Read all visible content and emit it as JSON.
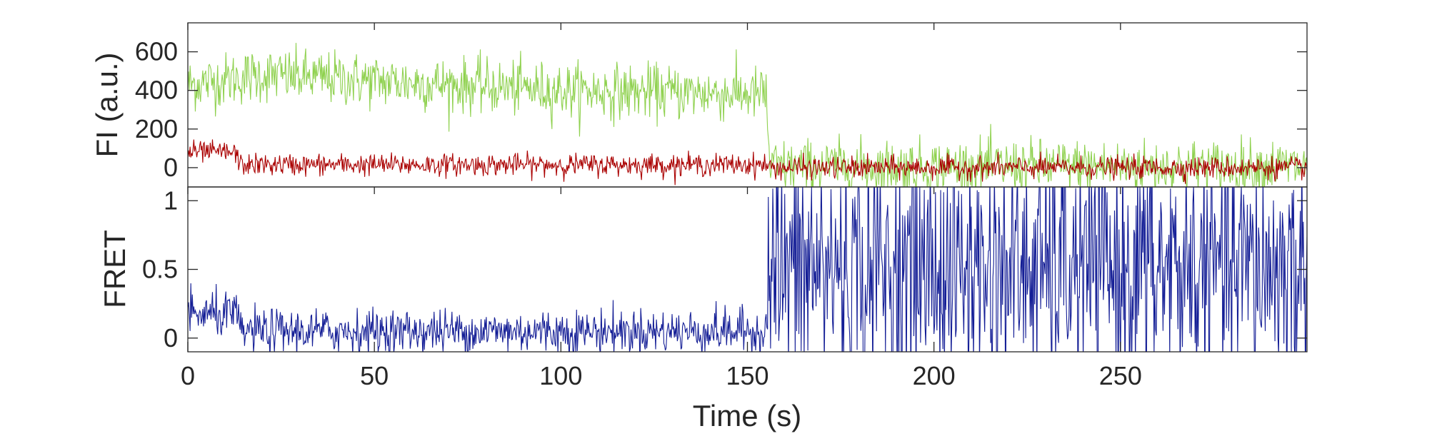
{
  "colors": {
    "donor": "#8fd14f",
    "acceptor": "#aa0000",
    "fret": "#141e96",
    "axes": "#262626"
  },
  "chart_data": [
    {
      "type": "line",
      "panel": "top",
      "ylabel": "FI (a.u.)",
      "xlim": [
        0,
        300
      ],
      "ylim": [
        -100,
        750
      ],
      "yticks": [
        0,
        200,
        400,
        600
      ],
      "ytick_labels": [
        "0",
        "200",
        "400",
        "600"
      ],
      "x_sampling": {
        "start": 0,
        "end": 300,
        "step": 0.2
      },
      "series": [
        {
          "color": "#8fd14f",
          "trend": {
            "x": [
              0,
              20,
              50,
              100,
              130,
              155,
              156,
              300
            ],
            "y": [
              430,
              480,
              450,
              400,
              390,
              380,
              5,
              5
            ]
          },
          "noise_sd": 70
        },
        {
          "color": "#aa0000",
          "trend": {
            "x": [
              0,
              10,
              13,
              14,
              155,
              156,
              300
            ],
            "y": [
              80,
              80,
              75,
              15,
              15,
              0,
              0
            ]
          },
          "noise_sd": 28
        }
      ]
    },
    {
      "type": "line",
      "panel": "bottom",
      "ylabel": "FRET",
      "xlabel": "Time (s)",
      "xlim": [
        0,
        300
      ],
      "ylim": [
        -0.1,
        1.1
      ],
      "yticks": [
        0,
        0.5,
        1
      ],
      "ytick_labels": [
        "0",
        "0.5",
        "1"
      ],
      "xticks": [
        0,
        50,
        100,
        150,
        200,
        250
      ],
      "xtick_labels": [
        "0",
        "50",
        "100",
        "150",
        "200",
        "250"
      ],
      "x_sampling": {
        "start": 0,
        "end": 300,
        "step": 0.2
      },
      "series": [
        {
          "color": "#141e96",
          "trend": {
            "x": [
              0,
              13,
              14,
              155,
              156,
              300
            ],
            "y": [
              0.17,
              0.17,
              0.05,
              0.05,
              0.5,
              0.5
            ]
          },
          "noise_sd": 0.08,
          "noise_sd_after_x155": 0.45
        }
      ]
    }
  ]
}
